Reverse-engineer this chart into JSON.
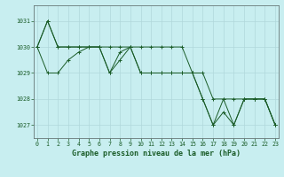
{
  "title": "Graphe pression niveau de la mer (hPa)",
  "bg_color": "#c8eef0",
  "grid_color": "#b0d8db",
  "line_color": "#1a5c28",
  "marker_color": "#1a5c28",
  "series": [
    {
      "x": [
        0,
        1,
        2,
        3,
        4,
        5,
        6,
        7,
        8,
        9,
        10,
        11,
        12,
        13,
        14,
        15,
        16,
        17,
        18,
        19,
        20,
        21,
        22,
        23
      ],
      "y": [
        1030,
        1029,
        1029,
        1029.5,
        1029.8,
        1030,
        1030,
        1029,
        1029.8,
        1030,
        1030,
        1030,
        1030,
        1030,
        1030,
        1029,
        1029,
        1028,
        1028,
        1028,
        1028,
        1028,
        1028,
        1027
      ]
    },
    {
      "x": [
        0,
        1,
        2,
        3,
        4,
        5,
        6,
        7,
        8,
        9,
        10,
        11,
        12,
        13,
        14,
        15,
        16,
        17,
        18,
        19,
        20,
        21,
        22,
        23
      ],
      "y": [
        1030,
        1031,
        1030,
        1030,
        1030,
        1030,
        1030,
        1030,
        1030,
        1030,
        1029,
        1029,
        1029,
        1029,
        1029,
        1029,
        1028,
        1027,
        1028,
        1027,
        1028,
        1028,
        1028,
        1027
      ]
    },
    {
      "x": [
        0,
        1,
        2,
        3,
        4,
        5,
        6,
        7,
        8,
        9,
        10,
        11,
        12,
        13,
        14,
        15,
        16,
        17,
        18,
        19,
        20,
        21,
        22,
        23
      ],
      "y": [
        1030,
        1031,
        1030,
        1030,
        1030,
        1030,
        1030,
        1029,
        1029.5,
        1030,
        1029,
        1029,
        1029,
        1029,
        1029,
        1029,
        1028,
        1027,
        1027.5,
        1027,
        1028,
        1028,
        1028,
        1027
      ]
    }
  ],
  "xlim": [
    -0.3,
    23.3
  ],
  "ylim": [
    1026.5,
    1031.6
  ],
  "yticks": [
    1027,
    1028,
    1029,
    1030,
    1031
  ],
  "xticks": [
    0,
    1,
    2,
    3,
    4,
    5,
    6,
    7,
    8,
    9,
    10,
    11,
    12,
    13,
    14,
    15,
    16,
    17,
    18,
    19,
    20,
    21,
    22,
    23
  ],
  "tick_fontsize": 4.8,
  "label_fontsize": 6.0
}
